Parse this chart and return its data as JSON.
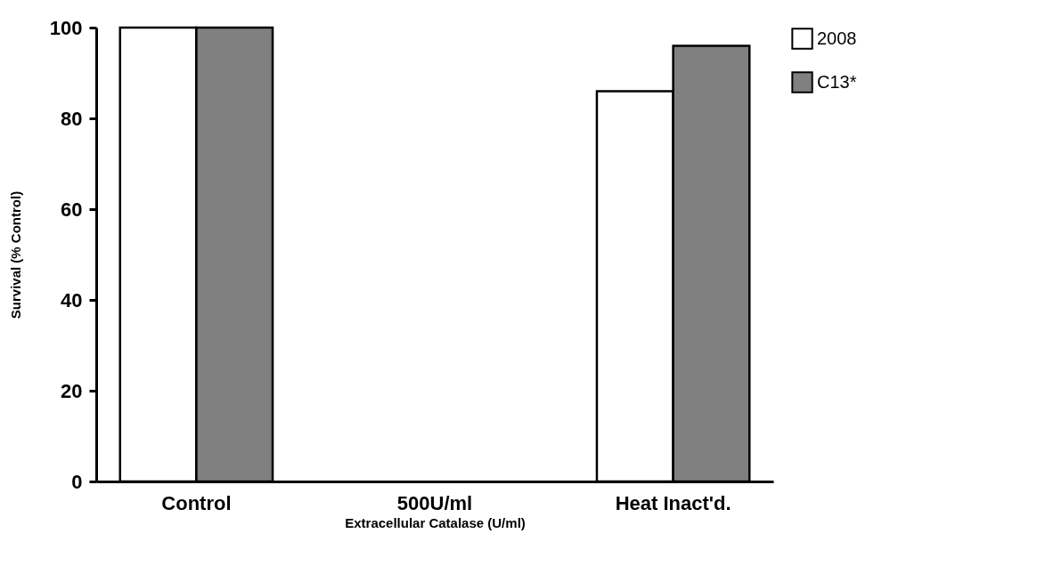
{
  "chart_data": {
    "type": "bar",
    "xlabel": "Extracellular Catalase (U/ml)",
    "ylabel": "Survival (% Control)",
    "categories": [
      "Control",
      "500U/ml",
      "Heat  Inact'd."
    ],
    "series": [
      {
        "name": "2008",
        "color": "#ffffff",
        "values": [
          100,
          0,
          86
        ]
      },
      {
        "name": "C13*",
        "color": "#808080",
        "values": [
          100,
          0,
          96
        ]
      }
    ],
    "ylim": [
      0,
      100
    ],
    "yticks": [
      0,
      20,
      40,
      60,
      80,
      100
    ],
    "grid": false,
    "legend": "right"
  }
}
